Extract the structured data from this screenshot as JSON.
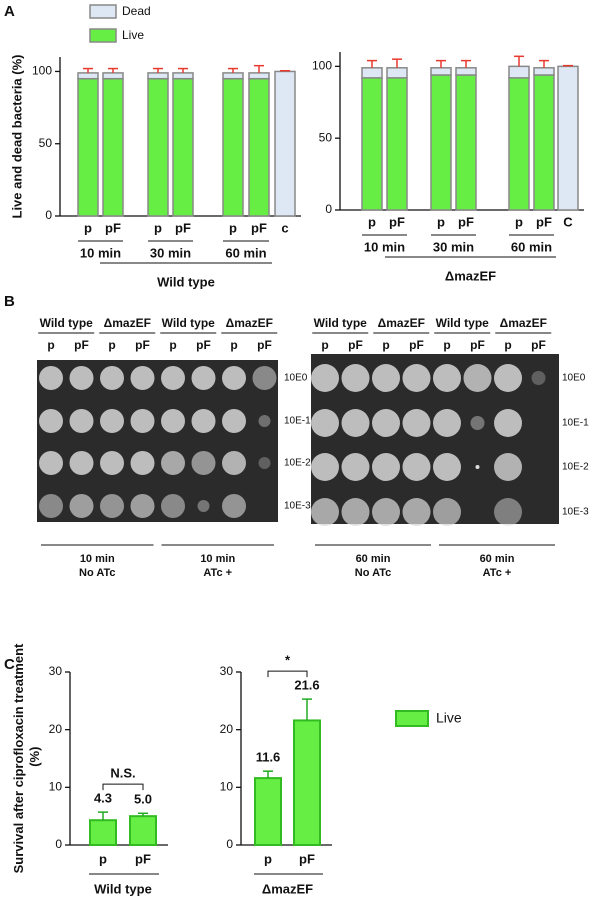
{
  "panels": {
    "labels": [
      "A",
      "B",
      "C"
    ]
  },
  "chart_data": [
    {
      "type": "stacked_bar",
      "ylabel": "Live and dead bacteria (%)",
      "categories": [
        "p",
        "pF",
        "p",
        "pF",
        "p",
        "pF",
        "c"
      ],
      "groups": [
        "10 min",
        "30 min",
        "60 min"
      ],
      "group_label": "Wild type",
      "ylim": [
        0,
        110
      ],
      "yticks": [
        0,
        50,
        100
      ],
      "series": [
        {
          "name": "Live",
          "color": "#66ee44",
          "values": [
            95,
            95,
            95,
            95,
            95,
            95,
            0
          ]
        },
        {
          "name": "Dead",
          "color": "#dde8f4",
          "values": [
            4,
            4,
            4,
            4,
            4,
            4,
            100
          ],
          "errors": [
            3,
            3,
            3,
            3,
            3,
            5,
            0.5
          ]
        }
      ]
    },
    {
      "type": "stacked_bar",
      "categories": [
        "p",
        "pF",
        "p",
        "pF",
        "p",
        "pF",
        "C"
      ],
      "groups": [
        "10 min",
        "30 min",
        "60 min"
      ],
      "group_label": "ΔmazEF",
      "ylim": [
        0,
        110
      ],
      "yticks": [
        0,
        50,
        100
      ],
      "series": [
        {
          "color": "#66ee44",
          "values": [
            92,
            92,
            94,
            94,
            92,
            94,
            0
          ]
        },
        {
          "color": "#dde8f4",
          "values": [
            7,
            7,
            5,
            5,
            8,
            5,
            100
          ],
          "errors": [
            5,
            6,
            5,
            5,
            7,
            5,
            0.5
          ]
        }
      ]
    },
    {
      "type": "bar",
      "ylabel": "Survival after ciprofloxacin treatment (%)",
      "categories": [
        "p",
        "pF"
      ],
      "group_label": "Wild type",
      "ylim": [
        0,
        30
      ],
      "yticks": [
        0,
        10,
        20,
        30
      ],
      "annotation": "N.S.",
      "series": [
        {
          "color": "#66ee44",
          "values": [
            4.3,
            5.0
          ],
          "value_labels": [
            "4.3",
            "5.0"
          ],
          "errors": [
            1.4,
            0.5
          ]
        }
      ]
    },
    {
      "type": "bar",
      "categories": [
        "p",
        "pF"
      ],
      "group_label": "ΔmazEF",
      "ylim": [
        0,
        30
      ],
      "yticks": [
        0,
        10,
        20,
        30
      ],
      "annotation": "*",
      "series": [
        {
          "name": "Live",
          "color": "#66ee44",
          "values": [
            11.6,
            21.6
          ],
          "value_labels": [
            "11.6",
            "21.6"
          ],
          "errors": [
            1.2,
            3.7
          ]
        }
      ]
    }
  ],
  "plates": [
    {
      "strains": [
        "Wild type",
        "ΔmazEF",
        "Wild type",
        "ΔmazEF"
      ],
      "lanes": [
        "p",
        "pF",
        "p",
        "pF",
        "p",
        "pF",
        "p",
        "pF"
      ],
      "dilutions": [
        "10E0",
        "10E-1",
        "10E-2",
        "10E-3"
      ],
      "conditions": [
        {
          "time": "10 min",
          "treatment": "No ATc"
        },
        {
          "time": "10 min",
          "treatment": "ATc +"
        }
      ]
    },
    {
      "strains": [
        "Wild type",
        "ΔmazEF",
        "Wild type",
        "ΔmazEF"
      ],
      "lanes": [
        "p",
        "pF",
        "p",
        "pF",
        "p",
        "pF",
        "p",
        "pF"
      ],
      "dilutions": [
        "10E0",
        "10E-1",
        "10E-2",
        "10E-3"
      ],
      "conditions": [
        {
          "time": "60 min",
          "treatment": "No ATc"
        },
        {
          "time": "60 min",
          "treatment": "ATc +"
        }
      ]
    }
  ]
}
